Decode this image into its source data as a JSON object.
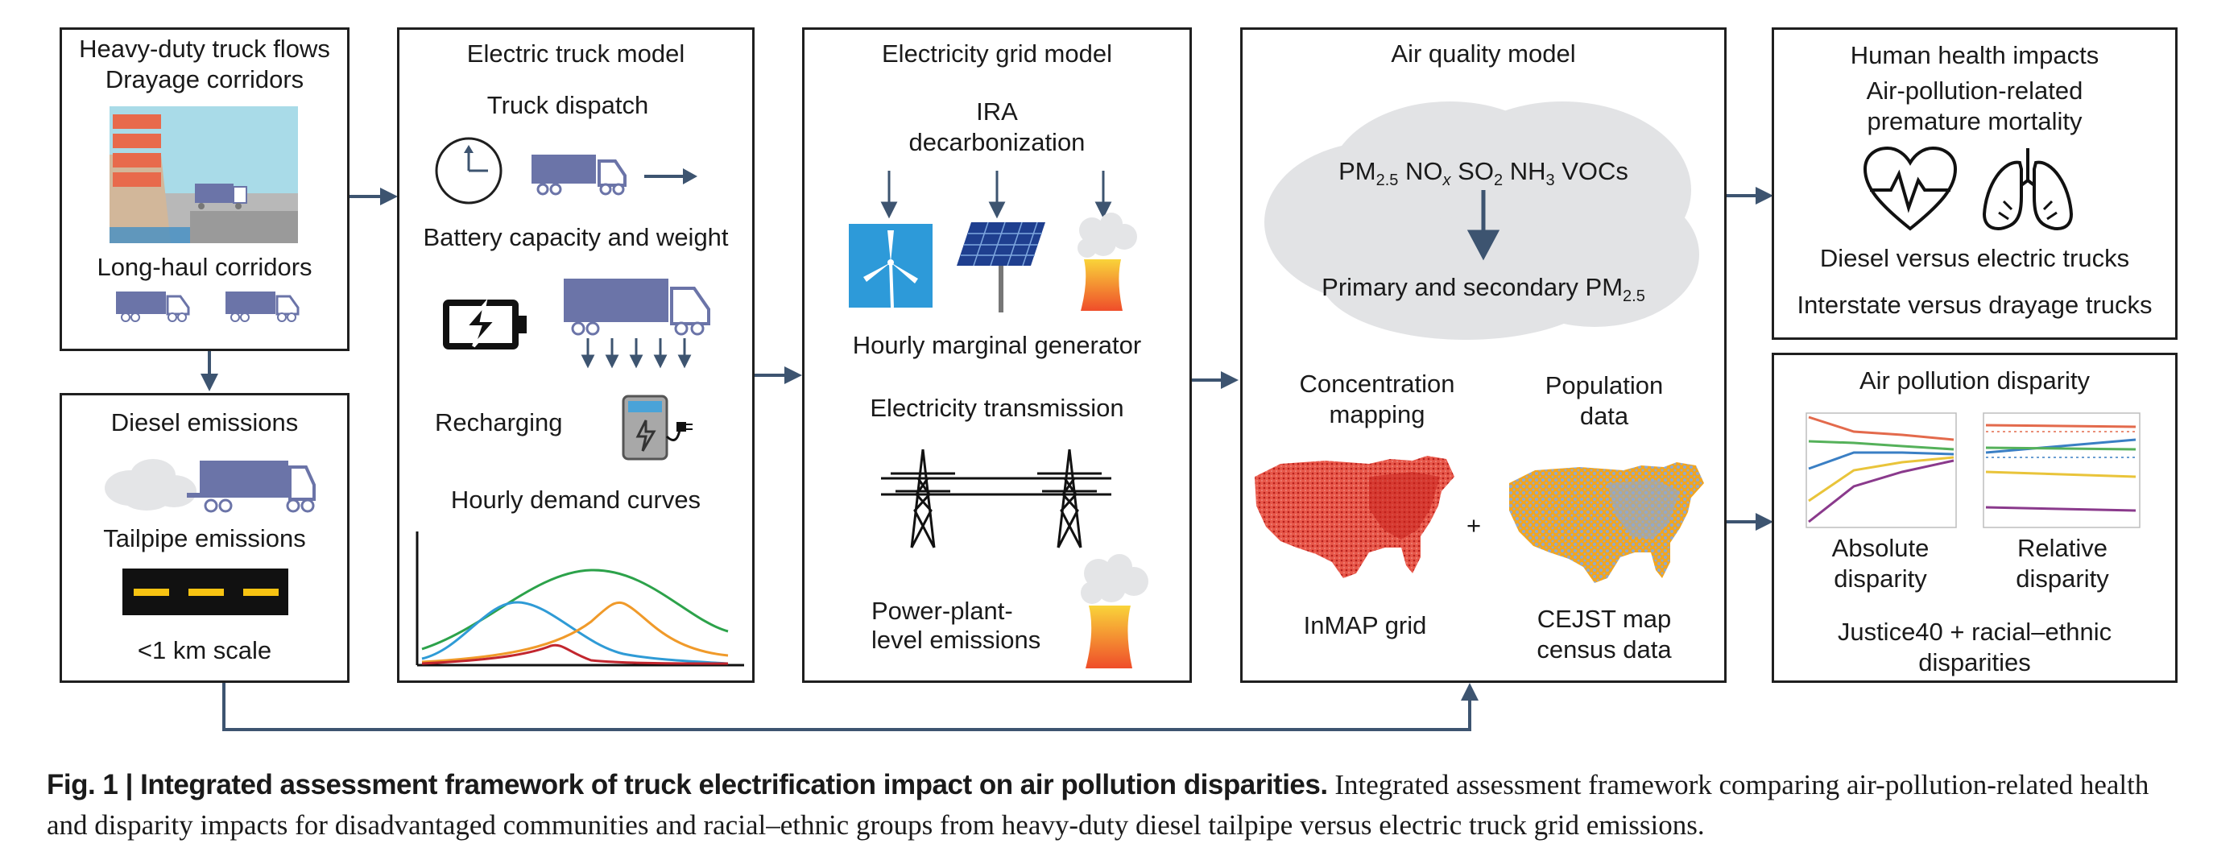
{
  "panels": {
    "flows": {
      "title": "Heavy-duty truck flows",
      "drayage": "Drayage corridors",
      "longhaul": "Long-haul corridors"
    },
    "diesel": {
      "title": "Diesel emissions",
      "tailpipe": "Tailpipe emissions",
      "scale": "<1 km scale"
    },
    "electric": {
      "title": "Electric truck model",
      "dispatch": "Truck dispatch",
      "battery": "Battery capacity and weight",
      "recharging": "Recharging",
      "demand": "Hourly demand curves"
    },
    "grid": {
      "title": "Electricity grid model",
      "ira_line1": "IRA",
      "ira_line2": "decarbonization",
      "marginal": "Hourly marginal generator",
      "transmission": "Electricity transmission",
      "plant_line1": "Power-plant-",
      "plant_line2": "level emissions"
    },
    "air": {
      "title": "Air quality model",
      "pollutants": {
        "pm": "PM",
        "pm_sub": "2.5",
        "nox": "NO",
        "nox_sub": "x",
        "so": "SO",
        "so_sub": "2",
        "nh": "NH",
        "nh_sub": "3",
        "voc": "VOCs"
      },
      "primary": "Primary and secondary PM",
      "primary_sub": "2.5",
      "conc_line1": "Concentration",
      "conc_line2": "mapping",
      "pop_line1": "Population",
      "pop_line2": "data",
      "plus": "+",
      "inmap": "InMAP grid",
      "cejst_line1": "CEJST map",
      "cejst_line2": "census data"
    },
    "health": {
      "title": "Human health impacts",
      "mort_line1": "Air-pollution-related",
      "mort_line2": "premature mortality",
      "diesel_vs": "Diesel versus electric trucks",
      "interstate_vs": "Interstate versus drayage trucks"
    },
    "disparity": {
      "title": "Air pollution disparity",
      "abs_line1": "Absolute",
      "abs_line2": "disparity",
      "rel_line1": "Relative",
      "rel_line2": "disparity",
      "justice_line1": "Justice40 + racial–ethnic",
      "justice_line2": "disparities"
    }
  },
  "caption": {
    "label": "Fig. 1 | Integrated assessment framework of truck electrification impact on air pollution disparities.",
    "text": " Integrated assessment framework comparing air-pollution-related health and disparity impacts for disadvantaged communities and racial–ethnic groups from heavy-duty diesel tailpipe versus electric truck grid emissions."
  },
  "colors": {
    "truck": "#6b74a8",
    "border": "#1f1f1f",
    "arrow": "#3d5470",
    "curve_green": "#2ca24a",
    "curve_blue": "#2f9bd6",
    "curve_orange": "#f09a2a",
    "curve_red": "#c2262e",
    "curve_purple": "#8a3a8c",
    "map_red": "#d93a2a",
    "map_orange": "#f3a51d",
    "map_blue": "#8fa9cf",
    "cloud": "#e2e3e5"
  }
}
